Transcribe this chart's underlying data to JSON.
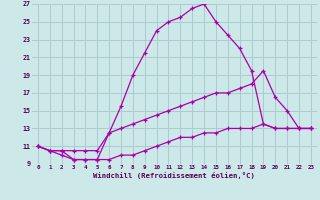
{
  "xlabel": "Windchill (Refroidissement éolien,°C)",
  "bg_color": "#cce8e8",
  "grid_color": "#aacccc",
  "line_color": "#aa00aa",
  "xlim": [
    -0.5,
    23.5
  ],
  "ylim": [
    9,
    27
  ],
  "yticks": [
    9,
    11,
    13,
    15,
    17,
    19,
    21,
    23,
    25,
    27
  ],
  "xticks": [
    0,
    1,
    2,
    3,
    4,
    5,
    6,
    7,
    8,
    9,
    10,
    11,
    12,
    13,
    14,
    15,
    16,
    17,
    18,
    19,
    20,
    21,
    22,
    23
  ],
  "line1_x": [
    0,
    1,
    2,
    3,
    4,
    5,
    6,
    7,
    8,
    9,
    10,
    11,
    12,
    13,
    14,
    15,
    16,
    17,
    18,
    19,
    20,
    21,
    22,
    23
  ],
  "line1_y": [
    11,
    10.5,
    10.5,
    9.5,
    9.5,
    9.5,
    12.5,
    15.5,
    19,
    21.5,
    24,
    25,
    25.5,
    26.5,
    27,
    25,
    23.5,
    22,
    19.5,
    13.5,
    13,
    13,
    13,
    13
  ],
  "line2_x": [
    0,
    1,
    2,
    3,
    4,
    5,
    6,
    7,
    8,
    9,
    10,
    11,
    12,
    13,
    14,
    15,
    16,
    17,
    18,
    19,
    20,
    21,
    22,
    23
  ],
  "line2_y": [
    11,
    10.5,
    10.5,
    10.5,
    10.5,
    10.5,
    12.5,
    13,
    13.5,
    14,
    14.5,
    15,
    15.5,
    16,
    16.5,
    17,
    17,
    17.5,
    18,
    19.5,
    16.5,
    15,
    13,
    13
  ],
  "line3_x": [
    0,
    1,
    2,
    3,
    4,
    5,
    6,
    7,
    8,
    9,
    10,
    11,
    12,
    13,
    14,
    15,
    16,
    17,
    18,
    19,
    20,
    21,
    22,
    23
  ],
  "line3_y": [
    11,
    10.5,
    10,
    9.5,
    9.5,
    9.5,
    9.5,
    10,
    10,
    10.5,
    11,
    11.5,
    12,
    12,
    12.5,
    12.5,
    13,
    13,
    13,
    13.5,
    13,
    13,
    13,
    13
  ]
}
